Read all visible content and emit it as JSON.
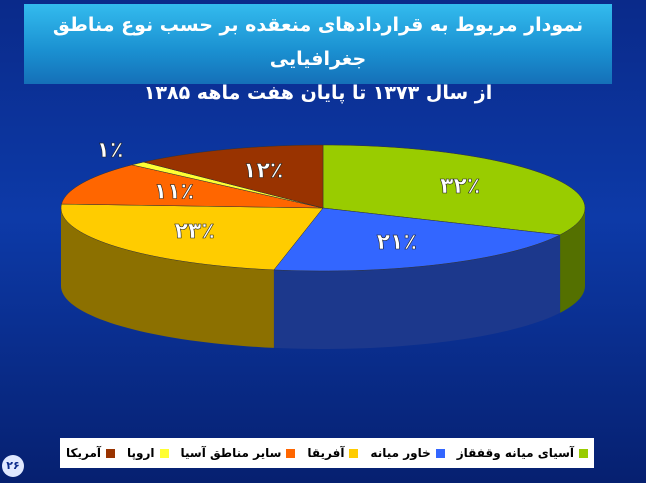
{
  "chart_data": {
    "type": "pie",
    "title": "نمودار مربوط به قراردادهای منعقده بر حسب نوع مناطق جغرافیایی",
    "subtitle": "از سال ۱۳۷۳ تا پایان  هفت ماهه ۱۳۸۵",
    "categories": [
      "آسیای میانه وقفقاز",
      "خاور میانه",
      "آفریقا",
      "سایر مناطق آسیا",
      "اروپا",
      "آمریکا"
    ],
    "values": [
      32,
      21,
      23,
      11,
      1,
      12
    ],
    "value_labels": [
      "۳۲٪",
      "۲۱٪",
      "۲۳٪",
      "۱۱٪",
      "۱٪",
      "۱۲٪"
    ],
    "colors": [
      "#99cc00",
      "#3366ff",
      "#ffcc00",
      "#ff6600",
      "#ffff33",
      "#993300"
    ],
    "legend": "bottom"
  },
  "page_number": "۲۶"
}
